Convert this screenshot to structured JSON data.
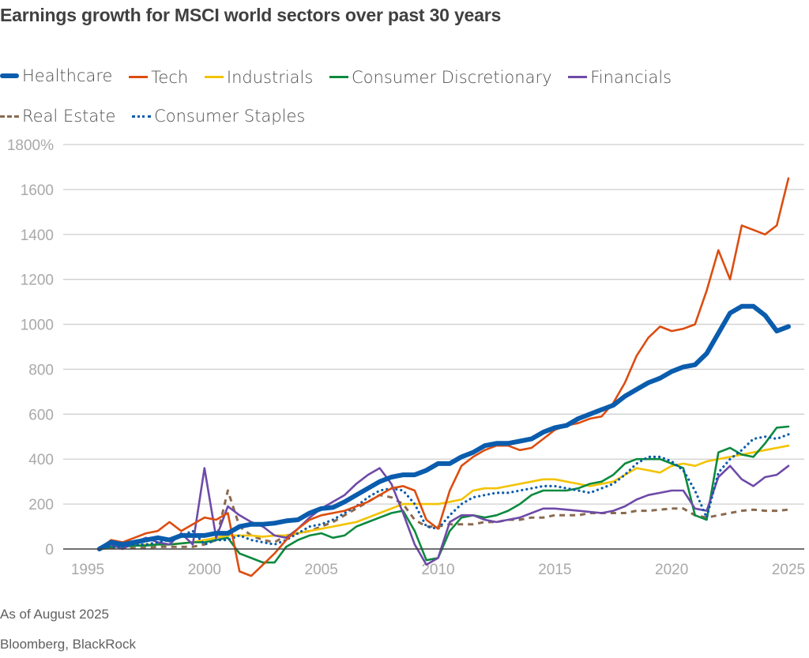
{
  "title": "Earnings growth for MSCI world sectors over past 30 years",
  "footer": {
    "note": "As of August 2025",
    "source": "Bloomberg, BlackRock"
  },
  "chart_data": {
    "type": "line",
    "title": "Earnings growth for MSCI world sectors over past 30 years",
    "xlabel": "",
    "ylabel": "",
    "xlim": [
      1995,
      2025
    ],
    "ylim": [
      0,
      1800
    ],
    "x_ticks": [
      "1995",
      "2000",
      "2005",
      "2010",
      "2015",
      "2020",
      "2025"
    ],
    "y_ticks": [
      "0",
      "200",
      "400",
      "600",
      "800",
      "1000",
      "1200",
      "1400",
      "1600",
      "1800%"
    ],
    "grid": true,
    "legend_position": "top",
    "x": [
      1995.5,
      1996,
      1996.5,
      1997,
      1997.5,
      1998,
      1998.5,
      1999,
      1999.5,
      2000,
      2000.5,
      2001,
      2001.5,
      2002,
      2002.5,
      2003,
      2003.5,
      2004,
      2004.5,
      2005,
      2005.5,
      2006,
      2006.5,
      2007,
      2007.5,
      2008,
      2008.5,
      2009,
      2009.5,
      2010,
      2010.5,
      2011,
      2011.5,
      2012,
      2012.5,
      2013,
      2013.5,
      2014,
      2014.5,
      2015,
      2015.5,
      2016,
      2016.5,
      2017,
      2017.5,
      2018,
      2018.5,
      2019,
      2019.5,
      2020,
      2020.5,
      2021,
      2021.5,
      2022,
      2022.5,
      2023,
      2023.5,
      2024,
      2024.5,
      2025
    ],
    "series": [
      {
        "name": "Healthcare",
        "color": "#0a5cad",
        "style": "solid-thick",
        "values": [
          0,
          30,
          20,
          30,
          40,
          50,
          40,
          60,
          60,
          60,
          70,
          70,
          100,
          110,
          110,
          115,
          125,
          130,
          160,
          180,
          185,
          210,
          240,
          270,
          300,
          320,
          330,
          330,
          350,
          380,
          380,
          410,
          430,
          460,
          470,
          470,
          480,
          490,
          520,
          540,
          550,
          580,
          600,
          620,
          640,
          680,
          710,
          740,
          760,
          790,
          810,
          820,
          870,
          960,
          1050,
          1080,
          1080,
          1040,
          970,
          990
        ]
      },
      {
        "name": "Tech",
        "color": "#dc4d0f",
        "style": "solid",
        "values": [
          0,
          40,
          30,
          50,
          70,
          80,
          120,
          80,
          110,
          140,
          130,
          160,
          -100,
          -120,
          -70,
          -20,
          40,
          90,
          130,
          150,
          160,
          170,
          190,
          210,
          240,
          270,
          280,
          260,
          130,
          90,
          260,
          370,
          410,
          440,
          460,
          460,
          440,
          450,
          490,
          530,
          550,
          560,
          580,
          590,
          650,
          740,
          860,
          940,
          990,
          970,
          980,
          1000,
          1150,
          1330,
          1200,
          1440,
          1420,
          1400,
          1440,
          1650
        ]
      },
      {
        "name": "Industrials",
        "color": "#f3c300",
        "style": "solid",
        "values": [
          0,
          10,
          10,
          15,
          20,
          20,
          20,
          25,
          30,
          40,
          50,
          60,
          60,
          60,
          55,
          60,
          60,
          70,
          80,
          90,
          100,
          110,
          120,
          140,
          160,
          180,
          200,
          200,
          200,
          200,
          210,
          220,
          260,
          270,
          270,
          280,
          290,
          300,
          310,
          310,
          300,
          290,
          280,
          290,
          300,
          330,
          360,
          350,
          340,
          370,
          380,
          370,
          390,
          400,
          410,
          420,
          430,
          440,
          450,
          460
        ]
      },
      {
        "name": "Consumer Discretionary",
        "color": "#0b8a3e",
        "style": "solid",
        "values": [
          0,
          10,
          10,
          15,
          15,
          20,
          20,
          25,
          30,
          30,
          40,
          50,
          -20,
          -40,
          -60,
          -60,
          10,
          40,
          60,
          70,
          50,
          60,
          100,
          120,
          140,
          160,
          170,
          80,
          -50,
          -40,
          80,
          140,
          150,
          140,
          150,
          170,
          200,
          240,
          260,
          260,
          260,
          270,
          290,
          300,
          330,
          380,
          400,
          400,
          400,
          380,
          360,
          150,
          130,
          430,
          450,
          420,
          410,
          470,
          540,
          545
        ]
      },
      {
        "name": "Financials",
        "color": "#6e4aa8",
        "style": "solid",
        "values": [
          0,
          20,
          0,
          30,
          50,
          30,
          20,
          70,
          20,
          360,
          50,
          190,
          150,
          120,
          100,
          60,
          50,
          90,
          140,
          180,
          210,
          240,
          290,
          330,
          360,
          290,
          160,
          20,
          -70,
          -40,
          120,
          150,
          150,
          130,
          120,
          130,
          140,
          160,
          180,
          180,
          175,
          170,
          165,
          160,
          170,
          190,
          220,
          240,
          250,
          260,
          260,
          180,
          170,
          320,
          370,
          310,
          280,
          320,
          330,
          370
        ]
      },
      {
        "name": "Real Estate",
        "color": "#8a6a4f",
        "style": "dashed",
        "values": [
          0,
          5,
          5,
          5,
          5,
          10,
          10,
          10,
          10,
          20,
          40,
          260,
          100,
          60,
          40,
          30,
          60,
          70,
          80,
          100,
          120,
          150,
          180,
          210,
          240,
          230,
          200,
          130,
          100,
          100,
          110,
          110,
          110,
          120,
          120,
          130,
          130,
          140,
          140,
          150,
          150,
          150,
          160,
          160,
          160,
          160,
          170,
          170,
          175,
          180,
          180,
          150,
          140,
          150,
          160,
          170,
          175,
          170,
          170,
          175
        ]
      },
      {
        "name": "Consumer Staples",
        "color": "#0a5cad",
        "style": "dotted",
        "values": [
          0,
          10,
          10,
          20,
          20,
          30,
          40,
          60,
          80,
          20,
          40,
          40,
          60,
          40,
          30,
          20,
          40,
          70,
          100,
          110,
          130,
          160,
          190,
          230,
          260,
          270,
          260,
          200,
          100,
          90,
          150,
          200,
          230,
          240,
          250,
          250,
          260,
          270,
          280,
          280,
          270,
          260,
          250,
          270,
          290,
          330,
          380,
          410,
          410,
          390,
          350,
          260,
          140,
          340,
          400,
          440,
          490,
          500,
          490,
          510
        ]
      }
    ]
  }
}
